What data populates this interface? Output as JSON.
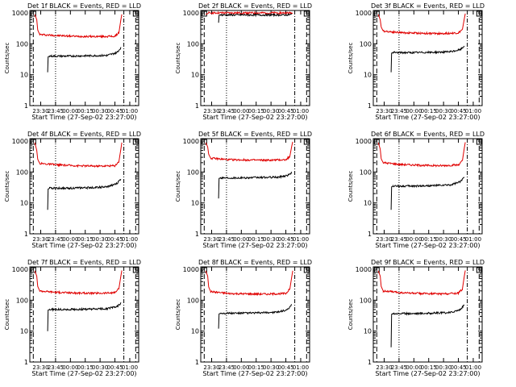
{
  "colors": {
    "events": "#000000",
    "lld": "#e00000",
    "axis": "#000000",
    "background": "#ffffff"
  },
  "chart_data": [
    {
      "type": "line",
      "title": "Det 1f BLACK = Events, RED = LLD",
      "xlabel": "Start Time (27-Sep-02 23:27:00)",
      "ylabel": "Counts/sec",
      "x_ticks": [
        "23:30",
        "23:45",
        "00:00",
        "00:15",
        "00:30",
        "00:45",
        "01:00"
      ],
      "y_ticks": [
        "1",
        "10",
        "100",
        "1000"
      ],
      "xlim_minutes": [
        -8,
        102
      ],
      "ylim": [
        1,
        1200
      ],
      "y_scale": "log",
      "series": [
        {
          "values": [
            [
              -3,
              900
            ],
            [
              -1,
              600
            ],
            [
              0,
              280
            ],
            [
              2,
              200
            ],
            [
              20,
              185
            ],
            [
              40,
              175
            ],
            [
              60,
              172
            ],
            [
              78,
              175
            ],
            [
              82,
              230
            ],
            [
              84,
              600
            ],
            [
              85,
              900
            ]
          ]
        },
        {
          "values": [
            [
              10,
              12
            ],
            [
              10.5,
              38
            ],
            [
              12,
              40
            ],
            [
              30,
              40
            ],
            [
              50,
              41
            ],
            [
              70,
              42
            ],
            [
              80,
              52
            ],
            [
              84,
              75
            ]
          ]
        }
      ]
    },
    {
      "type": "line",
      "title": "Det 2f BLACK = Events, RED = LLD",
      "xlabel": "Start Time (27-Sep-02 23:27:00)",
      "ylabel": "Counts/sec",
      "x_ticks": [
        "23:30",
        "23:45",
        "00:00",
        "00:15",
        "00:30",
        "00:45",
        "01:00"
      ],
      "y_ticks": [
        "1",
        "10",
        "100",
        "1000"
      ],
      "xlim_minutes": [
        -8,
        102
      ],
      "ylim": [
        1,
        1200
      ],
      "y_scale": "log",
      "series": [
        {
          "values": [
            [
              -3,
              900
            ],
            [
              -1,
              950
            ],
            [
              0,
              1000
            ],
            [
              5,
              1000
            ],
            [
              40,
              1000
            ],
            [
              80,
              1000
            ],
            [
              84,
              1000
            ],
            [
              85,
              950
            ]
          ]
        },
        {
          "values": [
            [
              10,
              480
            ],
            [
              10.5,
              850
            ],
            [
              12,
              860
            ],
            [
              40,
              860
            ],
            [
              80,
              860
            ],
            [
              84,
              900
            ]
          ]
        }
      ]
    },
    {
      "type": "line",
      "title": "Det 3f BLACK = Events, RED = LLD",
      "xlabel": "Start Time (27-Sep-02 23:27:00)",
      "ylabel": "Counts/sec",
      "x_ticks": [
        "23:30",
        "23:45",
        "00:00",
        "00:15",
        "00:30",
        "00:45",
        "01:00"
      ],
      "y_ticks": [
        "1",
        "10",
        "100",
        "1000"
      ],
      "xlim_minutes": [
        -8,
        102
      ],
      "ylim": [
        1,
        1200
      ],
      "y_scale": "log",
      "series": [
        {
          "values": [
            [
              -3,
              900
            ],
            [
              -1,
              600
            ],
            [
              0,
              350
            ],
            [
              2,
              260
            ],
            [
              20,
              230
            ],
            [
              40,
              220
            ],
            [
              60,
              215
            ],
            [
              78,
              225
            ],
            [
              82,
              290
            ],
            [
              84,
              650
            ],
            [
              85,
              950
            ]
          ]
        },
        {
          "values": [
            [
              10,
              12
            ],
            [
              10.5,
              50
            ],
            [
              12,
              52
            ],
            [
              30,
              52
            ],
            [
              50,
              53
            ],
            [
              70,
              55
            ],
            [
              80,
              65
            ],
            [
              84,
              85
            ]
          ]
        }
      ]
    },
    {
      "type": "line",
      "title": "Det 4f BLACK = Events, RED = LLD",
      "xlabel": "Start Time (27-Sep-02 23:27:00)",
      "ylabel": "Counts/sec",
      "x_ticks": [
        "23:30",
        "23:45",
        "00:00",
        "00:15",
        "00:30",
        "00:45",
        "01:00"
      ],
      "y_ticks": [
        "1",
        "10",
        "100",
        "1000"
      ],
      "xlim_minutes": [
        -8,
        102
      ],
      "ylim": [
        1,
        1200
      ],
      "y_scale": "log",
      "series": [
        {
          "values": [
            [
              -3,
              900
            ],
            [
              -1,
              500
            ],
            [
              0,
              260
            ],
            [
              2,
              190
            ],
            [
              20,
              170
            ],
            [
              40,
              160
            ],
            [
              60,
              155
            ],
            [
              78,
              160
            ],
            [
              82,
              220
            ],
            [
              84,
              550
            ],
            [
              85,
              900
            ]
          ]
        },
        {
          "values": [
            [
              10,
              6
            ],
            [
              10.5,
              28
            ],
            [
              12,
              30
            ],
            [
              30,
              30
            ],
            [
              50,
              31
            ],
            [
              70,
              33
            ],
            [
              80,
              42
            ],
            [
              84,
              60
            ]
          ]
        }
      ]
    },
    {
      "type": "line",
      "title": "Det 5f BLACK = Events, RED = LLD",
      "xlabel": "Start Time (27-Sep-02 23:27:00)",
      "ylabel": "Counts/sec",
      "x_ticks": [
        "23:30",
        "23:45",
        "00:00",
        "00:15",
        "00:30",
        "00:45",
        "01:00"
      ],
      "y_ticks": [
        "1",
        "10",
        "100",
        "1000"
      ],
      "xlim_minutes": [
        -8,
        102
      ],
      "ylim": [
        1,
        1200
      ],
      "y_scale": "log",
      "series": [
        {
          "values": [
            [
              -3,
              900
            ],
            [
              -1,
              650
            ],
            [
              0,
              380
            ],
            [
              2,
              280
            ],
            [
              20,
              250
            ],
            [
              40,
              245
            ],
            [
              60,
              240
            ],
            [
              78,
              250
            ],
            [
              82,
              320
            ],
            [
              84,
              700
            ],
            [
              85,
              950
            ]
          ]
        },
        {
          "values": [
            [
              10,
              14
            ],
            [
              10.5,
              62
            ],
            [
              12,
              65
            ],
            [
              30,
              65
            ],
            [
              50,
              66
            ],
            [
              70,
              68
            ],
            [
              80,
              78
            ],
            [
              84,
              95
            ]
          ]
        }
      ]
    },
    {
      "type": "line",
      "title": "Det 6f BLACK = Events, RED = LLD",
      "xlabel": "Start Time (27-Sep-02 23:27:00)",
      "ylabel": "Counts/sec",
      "x_ticks": [
        "23:30",
        "23:45",
        "00:00",
        "00:15",
        "00:30",
        "00:45",
        "01:00"
      ],
      "y_ticks": [
        "1",
        "10",
        "100",
        "1000"
      ],
      "xlim_minutes": [
        -8,
        102
      ],
      "ylim": [
        1,
        1200
      ],
      "y_scale": "log",
      "series": [
        {
          "values": [
            [
              -3,
              900
            ],
            [
              -1,
              550
            ],
            [
              0,
              270
            ],
            [
              2,
              200
            ],
            [
              20,
              175
            ],
            [
              40,
              165
            ],
            [
              60,
              160
            ],
            [
              78,
              170
            ],
            [
              82,
              230
            ],
            [
              84,
              600
            ],
            [
              85,
              920
            ]
          ]
        },
        {
          "values": [
            [
              10,
              6
            ],
            [
              10.5,
              33
            ],
            [
              12,
              35
            ],
            [
              30,
              35
            ],
            [
              50,
              36
            ],
            [
              70,
              38
            ],
            [
              80,
              48
            ],
            [
              84,
              70
            ]
          ]
        }
      ]
    },
    {
      "type": "line",
      "title": "Det 7f BLACK = Events, RED = LLD",
      "xlabel": "Start Time (27-Sep-02 23:27:00)",
      "ylabel": "Counts/sec",
      "x_ticks": [
        "23:30",
        "23:45",
        "00:00",
        "00:15",
        "00:30",
        "00:45",
        "01:00"
      ],
      "y_ticks": [
        "1",
        "10",
        "100",
        "1000"
      ],
      "xlim_minutes": [
        -8,
        102
      ],
      "ylim": [
        1,
        1200
      ],
      "y_scale": "log",
      "series": [
        {
          "values": [
            [
              -3,
              900
            ],
            [
              -1,
              600
            ],
            [
              0,
              280
            ],
            [
              2,
              200
            ],
            [
              20,
              180
            ],
            [
              40,
              170
            ],
            [
              60,
              168
            ],
            [
              78,
              175
            ],
            [
              82,
              240
            ],
            [
              84,
              600
            ],
            [
              85,
              920
            ]
          ]
        },
        {
          "values": [
            [
              10,
              10
            ],
            [
              10.5,
              48
            ],
            [
              12,
              50
            ],
            [
              30,
              50
            ],
            [
              50,
              51
            ],
            [
              70,
              53
            ],
            [
              80,
              62
            ],
            [
              84,
              80
            ]
          ]
        }
      ]
    },
    {
      "type": "line",
      "title": "Det 8f BLACK = Events, RED = LLD",
      "xlabel": "Start Time (27-Sep-02 23:27:00)",
      "ylabel": "Counts/sec",
      "x_ticks": [
        "23:30",
        "23:45",
        "00:00",
        "00:15",
        "00:30",
        "00:45",
        "01:00"
      ],
      "y_ticks": [
        "1",
        "10",
        "100",
        "1000"
      ],
      "xlim_minutes": [
        -8,
        102
      ],
      "ylim": [
        1,
        1200
      ],
      "y_scale": "log",
      "series": [
        {
          "values": [
            [
              -3,
              900
            ],
            [
              -1,
              600
            ],
            [
              0,
              270
            ],
            [
              2,
              190
            ],
            [
              20,
              165
            ],
            [
              40,
              160
            ],
            [
              60,
              158
            ],
            [
              78,
              165
            ],
            [
              82,
              230
            ],
            [
              84,
              580
            ],
            [
              85,
              900
            ]
          ]
        },
        {
          "values": [
            [
              10,
              12
            ],
            [
              10.5,
              36
            ],
            [
              12,
              38
            ],
            [
              30,
              38
            ],
            [
              50,
              39
            ],
            [
              70,
              41
            ],
            [
              80,
              50
            ],
            [
              84,
              70
            ]
          ]
        }
      ]
    },
    {
      "type": "line",
      "title": "Det 9f BLACK = Events, RED = LLD",
      "xlabel": "Start Time (27-Sep-02 23:27:00)",
      "ylabel": "Counts/sec",
      "x_ticks": [
        "23:30",
        "23:45",
        "00:00",
        "00:15",
        "00:30",
        "00:45",
        "01:00"
      ],
      "y_ticks": [
        "1",
        "10",
        "100",
        "1000"
      ],
      "xlim_minutes": [
        -8,
        102
      ],
      "ylim": [
        1,
        1200
      ],
      "y_scale": "log",
      "series": [
        {
          "values": [
            [
              -3,
              900
            ],
            [
              -1,
              600
            ],
            [
              0,
              280
            ],
            [
              2,
              200
            ],
            [
              20,
              175
            ],
            [
              40,
              165
            ],
            [
              60,
              160
            ],
            [
              78,
              170
            ],
            [
              82,
              230
            ],
            [
              84,
              600
            ],
            [
              85,
              920
            ]
          ]
        },
        {
          "values": [
            [
              10,
              3
            ],
            [
              10.5,
              35
            ],
            [
              12,
              37
            ],
            [
              30,
              37
            ],
            [
              50,
              38
            ],
            [
              70,
              40
            ],
            [
              80,
              50
            ],
            [
              84,
              70
            ]
          ]
        }
      ]
    }
  ]
}
